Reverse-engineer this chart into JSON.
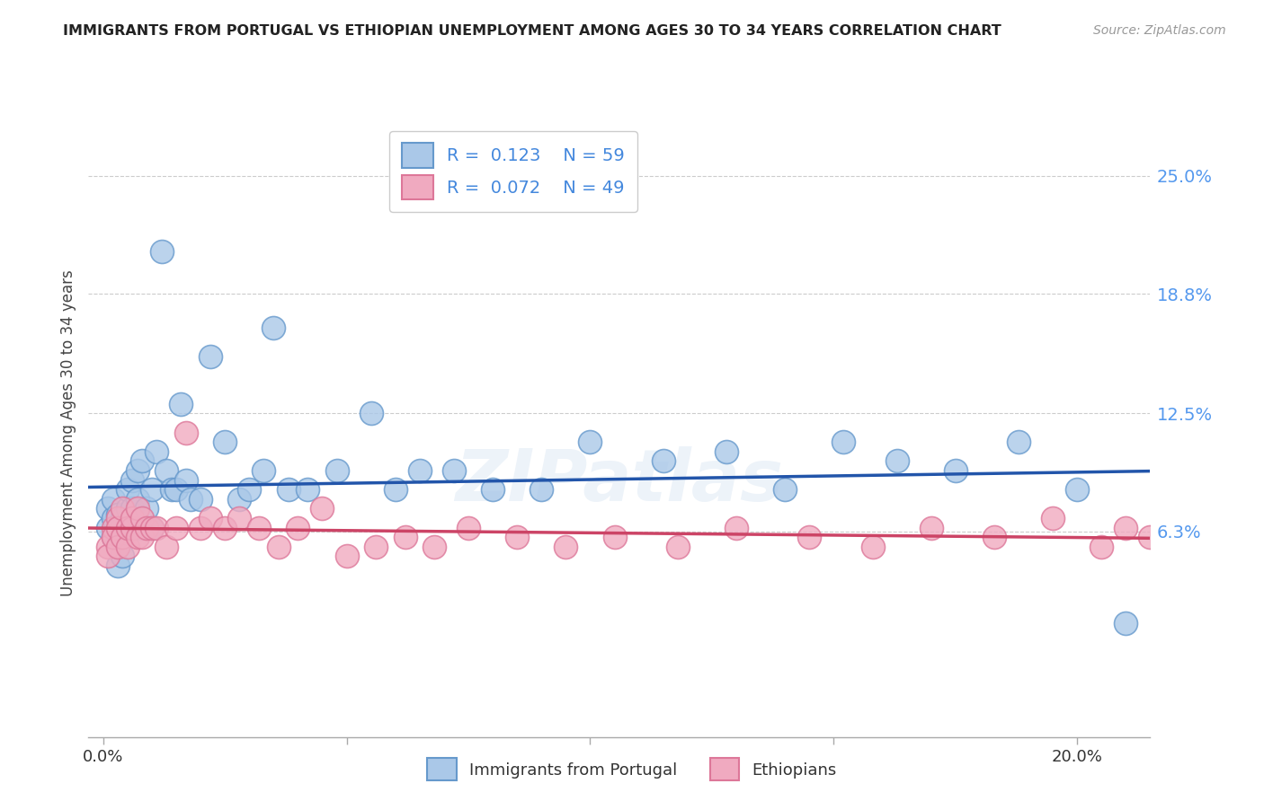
{
  "title": "IMMIGRANTS FROM PORTUGAL VS ETHIOPIAN UNEMPLOYMENT AMONG AGES 30 TO 34 YEARS CORRELATION CHART",
  "source": "Source: ZipAtlas.com",
  "ylabel": "Unemployment Among Ages 30 to 34 years",
  "ytick_values": [
    0.063,
    0.125,
    0.188,
    0.25
  ],
  "ytick_labels": [
    "6.3%",
    "12.5%",
    "18.8%",
    "25.0%"
  ],
  "xlim": [
    -0.003,
    0.215
  ],
  "ylim": [
    -0.045,
    0.275
  ],
  "series1_label": "Immigrants from Portugal",
  "series2_label": "Ethiopians",
  "series1_R": "0.123",
  "series1_N": "59",
  "series2_R": "0.072",
  "series2_N": "49",
  "series1_color": "#aac8e8",
  "series2_color": "#f0aac0",
  "series1_edge_color": "#6699cc",
  "series2_edge_color": "#dd7799",
  "trend1_color": "#2255aa",
  "trend2_color": "#cc4466",
  "background_color": "#ffffff",
  "grid_color": "#cccccc",
  "title_color": "#222222",
  "axis_label_color": "#444444",
  "ytick_color": "#5599ee",
  "legend_text_color": "#4488dd",
  "series1_x": [
    0.001,
    0.001,
    0.002,
    0.002,
    0.002,
    0.003,
    0.003,
    0.003,
    0.003,
    0.004,
    0.004,
    0.004,
    0.005,
    0.005,
    0.005,
    0.006,
    0.006,
    0.006,
    0.007,
    0.007,
    0.008,
    0.008,
    0.009,
    0.01,
    0.01,
    0.011,
    0.012,
    0.013,
    0.014,
    0.015,
    0.016,
    0.017,
    0.018,
    0.02,
    0.022,
    0.025,
    0.028,
    0.03,
    0.033,
    0.035,
    0.038,
    0.042,
    0.048,
    0.055,
    0.06,
    0.065,
    0.072,
    0.08,
    0.09,
    0.1,
    0.115,
    0.128,
    0.14,
    0.152,
    0.163,
    0.175,
    0.188,
    0.2,
    0.21
  ],
  "series1_y": [
    0.065,
    0.075,
    0.07,
    0.08,
    0.06,
    0.072,
    0.065,
    0.055,
    0.045,
    0.07,
    0.065,
    0.05,
    0.075,
    0.065,
    0.085,
    0.065,
    0.09,
    0.075,
    0.08,
    0.095,
    0.065,
    0.1,
    0.075,
    0.065,
    0.085,
    0.105,
    0.21,
    0.095,
    0.085,
    0.085,
    0.13,
    0.09,
    0.08,
    0.08,
    0.155,
    0.11,
    0.08,
    0.085,
    0.095,
    0.17,
    0.085,
    0.085,
    0.095,
    0.125,
    0.085,
    0.095,
    0.095,
    0.085,
    0.085,
    0.11,
    0.1,
    0.105,
    0.085,
    0.11,
    0.1,
    0.095,
    0.11,
    0.085,
    0.015
  ],
  "series2_x": [
    0.001,
    0.001,
    0.002,
    0.002,
    0.003,
    0.003,
    0.003,
    0.004,
    0.004,
    0.005,
    0.005,
    0.006,
    0.006,
    0.007,
    0.007,
    0.008,
    0.008,
    0.009,
    0.01,
    0.011,
    0.013,
    0.015,
    0.017,
    0.02,
    0.022,
    0.025,
    0.028,
    0.032,
    0.036,
    0.04,
    0.045,
    0.05,
    0.056,
    0.062,
    0.068,
    0.075,
    0.085,
    0.095,
    0.105,
    0.118,
    0.13,
    0.145,
    0.158,
    0.17,
    0.183,
    0.195,
    0.205,
    0.21,
    0.215
  ],
  "series2_y": [
    0.055,
    0.05,
    0.065,
    0.06,
    0.07,
    0.065,
    0.055,
    0.075,
    0.06,
    0.055,
    0.065,
    0.065,
    0.07,
    0.075,
    0.06,
    0.07,
    0.06,
    0.065,
    0.065,
    0.065,
    0.055,
    0.065,
    0.115,
    0.065,
    0.07,
    0.065,
    0.07,
    0.065,
    0.055,
    0.065,
    0.075,
    0.05,
    0.055,
    0.06,
    0.055,
    0.065,
    0.06,
    0.055,
    0.06,
    0.055,
    0.065,
    0.06,
    0.055,
    0.065,
    0.06,
    0.07,
    0.055,
    0.065,
    0.06
  ]
}
